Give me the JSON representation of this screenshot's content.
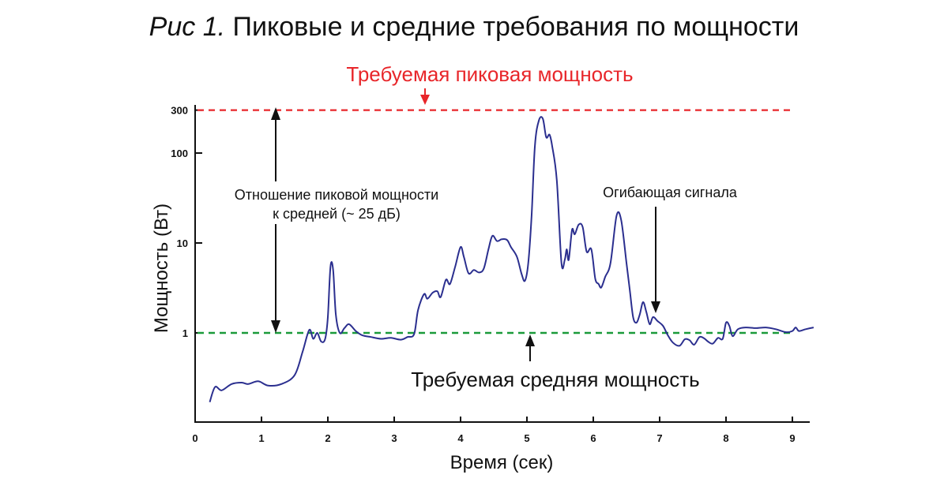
{
  "colors": {
    "signal": "#2b2f8f",
    "peak_line": "#e8262a",
    "avg_line": "#1a9a3a",
    "axis": "#111111"
  },
  "chart_data": {
    "type": "line",
    "title_prefix": "Рис 1.",
    "title": "Пиковые и средние требования по мощности",
    "xlabel": "Время (сек)",
    "ylabel": "Мощность (Вт)",
    "yscale": "log",
    "xlim": [
      0,
      9.3
    ],
    "ylim": [
      0.1,
      300
    ],
    "x_ticks": [
      {
        "value": 0,
        "label": "0"
      },
      {
        "value": 1,
        "label": "1"
      },
      {
        "value": 2,
        "label": "2"
      },
      {
        "value": 3,
        "label": "3"
      },
      {
        "value": 4,
        "label": "4"
      },
      {
        "value": 5,
        "label": "5"
      },
      {
        "value": 6,
        "label": "6"
      },
      {
        "value": 7,
        "label": "7"
      },
      {
        "value": 8,
        "label": "8"
      },
      {
        "value": 9,
        "label": "9"
      }
    ],
    "y_ticks": [
      {
        "value": 1,
        "label": "1"
      },
      {
        "value": 10,
        "label": "10"
      },
      {
        "value": 100,
        "label": "100"
      },
      {
        "value": 300,
        "label": "300"
      }
    ],
    "reference_lines": {
      "peak": {
        "value": 300,
        "label": "Требуемая пиковая мощность"
      },
      "average": {
        "value": 1,
        "label": "Требуемая средняя мощность"
      }
    },
    "annotations": {
      "ratio_line1": "Отношение пиковой мощности",
      "ratio_line2": "к средней (~ 25 дБ)",
      "envelope": "Огибающая сигнала"
    },
    "series": [
      {
        "values": [
          [
            0.22,
            0.17
          ],
          [
            0.3,
            0.25
          ],
          [
            0.4,
            0.23
          ],
          [
            0.55,
            0.27
          ],
          [
            0.7,
            0.28
          ],
          [
            0.8,
            0.27
          ],
          [
            0.95,
            0.29
          ],
          [
            1.1,
            0.26
          ],
          [
            1.3,
            0.27
          ],
          [
            1.5,
            0.34
          ],
          [
            1.62,
            0.62
          ],
          [
            1.72,
            1.08
          ],
          [
            1.78,
            0.86
          ],
          [
            1.84,
            1.0
          ],
          [
            1.9,
            0.8
          ],
          [
            1.96,
            0.86
          ],
          [
            2.0,
            1.5
          ],
          [
            2.04,
            5.5
          ],
          [
            2.08,
            5.0
          ],
          [
            2.12,
            1.6
          ],
          [
            2.18,
            1.0
          ],
          [
            2.25,
            1.13
          ],
          [
            2.32,
            1.25
          ],
          [
            2.42,
            1.05
          ],
          [
            2.52,
            0.94
          ],
          [
            2.65,
            0.9
          ],
          [
            2.8,
            0.86
          ],
          [
            2.95,
            0.88
          ],
          [
            3.1,
            0.84
          ],
          [
            3.2,
            0.9
          ],
          [
            3.3,
            0.97
          ],
          [
            3.36,
            1.8
          ],
          [
            3.45,
            2.7
          ],
          [
            3.5,
            2.4
          ],
          [
            3.58,
            2.8
          ],
          [
            3.65,
            2.9
          ],
          [
            3.7,
            2.5
          ],
          [
            3.78,
            3.9
          ],
          [
            3.84,
            3.5
          ],
          [
            3.92,
            5.5
          ],
          [
            4.0,
            9.0
          ],
          [
            4.05,
            7.0
          ],
          [
            4.12,
            4.6
          ],
          [
            4.2,
            5.0
          ],
          [
            4.28,
            4.7
          ],
          [
            4.35,
            5.2
          ],
          [
            4.42,
            8.5
          ],
          [
            4.48,
            12.0
          ],
          [
            4.55,
            10.5
          ],
          [
            4.62,
            11.0
          ],
          [
            4.7,
            10.8
          ],
          [
            4.76,
            9.0
          ],
          [
            4.85,
            7.0
          ],
          [
            4.92,
            4.5
          ],
          [
            4.97,
            3.8
          ],
          [
            5.02,
            6.0
          ],
          [
            5.07,
            20.0
          ],
          [
            5.12,
            120.0
          ],
          [
            5.18,
            230.0
          ],
          [
            5.24,
            240.0
          ],
          [
            5.29,
            150.0
          ],
          [
            5.34,
            160.0
          ],
          [
            5.38,
            120.0
          ],
          [
            5.45,
            50.0
          ],
          [
            5.52,
            6.0
          ],
          [
            5.57,
            6.5
          ],
          [
            5.6,
            8.5
          ],
          [
            5.63,
            6.5
          ],
          [
            5.68,
            14.0
          ],
          [
            5.72,
            12.5
          ],
          [
            5.78,
            16.0
          ],
          [
            5.84,
            15.0
          ],
          [
            5.9,
            8.0
          ],
          [
            5.97,
            8.5
          ],
          [
            6.03,
            4.0
          ],
          [
            6.08,
            3.5
          ],
          [
            6.12,
            3.2
          ],
          [
            6.18,
            4.2
          ],
          [
            6.26,
            6.0
          ],
          [
            6.35,
            20.0
          ],
          [
            6.42,
            18.0
          ],
          [
            6.5,
            6.0
          ],
          [
            6.55,
            3.0
          ],
          [
            6.6,
            1.5
          ],
          [
            6.65,
            1.3
          ],
          [
            6.7,
            1.6
          ],
          [
            6.75,
            2.2
          ],
          [
            6.8,
            1.7
          ],
          [
            6.85,
            1.25
          ],
          [
            6.9,
            1.5
          ],
          [
            6.97,
            1.35
          ],
          [
            7.05,
            1.2
          ],
          [
            7.12,
            0.95
          ],
          [
            7.2,
            0.78
          ],
          [
            7.3,
            0.72
          ],
          [
            7.38,
            0.85
          ],
          [
            7.45,
            0.83
          ],
          [
            7.52,
            0.74
          ],
          [
            7.6,
            0.9
          ],
          [
            7.67,
            0.87
          ],
          [
            7.73,
            0.8
          ],
          [
            7.8,
            0.76
          ],
          [
            7.88,
            0.88
          ],
          [
            7.95,
            0.86
          ],
          [
            8.0,
            1.3
          ],
          [
            8.05,
            1.2
          ],
          [
            8.1,
            0.92
          ],
          [
            8.18,
            1.1
          ],
          [
            8.3,
            1.15
          ],
          [
            8.45,
            1.13
          ],
          [
            8.6,
            1.15
          ],
          [
            8.75,
            1.1
          ],
          [
            8.9,
            1.02
          ],
          [
            9.0,
            1.05
          ],
          [
            9.05,
            1.15
          ],
          [
            9.1,
            1.05
          ],
          [
            9.2,
            1.1
          ],
          [
            9.32,
            1.15
          ]
        ]
      }
    ]
  }
}
